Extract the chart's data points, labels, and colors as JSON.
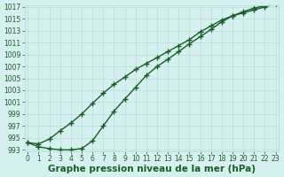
{
  "line1": {
    "x": [
      0,
      1,
      2,
      3,
      4,
      5,
      6,
      7,
      8,
      9,
      10,
      11,
      12,
      13,
      14,
      15,
      16,
      17,
      18,
      19,
      20,
      21,
      22,
      23
    ],
    "y": [
      994.2,
      994.0,
      994.8,
      996.2,
      997.5,
      999.0,
      1000.8,
      1002.5,
      1004.0,
      1005.2,
      1006.5,
      1007.5,
      1008.5,
      1009.5,
      1010.5,
      1011.5,
      1012.8,
      1013.8,
      1014.8,
      1015.5,
      1016.0,
      1016.5,
      1017.0,
      1017.5
    ]
  },
  "line2": {
    "x": [
      0,
      1,
      2,
      3,
      4,
      5,
      6,
      7,
      8,
      9,
      10,
      11,
      12,
      13,
      14,
      15,
      16,
      17,
      18,
      19,
      20,
      21,
      22,
      23
    ],
    "y": [
      994.2,
      993.5,
      993.2,
      993.0,
      993.0,
      993.2,
      994.5,
      997.0,
      999.5,
      1001.5,
      1003.5,
      1005.5,
      1007.0,
      1008.2,
      1009.5,
      1010.8,
      1012.0,
      1013.2,
      1014.5,
      1015.5,
      1016.2,
      1016.8,
      1017.2,
      1017.5
    ]
  },
  "ylim": [
    993,
    1017
  ],
  "xlim": [
    -0.3,
    23.3
  ],
  "yticks": [
    993,
    995,
    997,
    999,
    1001,
    1003,
    1005,
    1007,
    1009,
    1011,
    1013,
    1015,
    1017
  ],
  "xticks": [
    0,
    1,
    2,
    3,
    4,
    5,
    6,
    7,
    8,
    9,
    10,
    11,
    12,
    13,
    14,
    15,
    16,
    17,
    18,
    19,
    20,
    21,
    22,
    23
  ],
  "line_color": "#1a5c2a",
  "marker": "+",
  "bg_color": "#d6f0ef",
  "grid_color": "#b8dcd8",
  "xlabel": "Graphe pression niveau de la mer (hPa)",
  "xlabel_fontsize": 7.5,
  "tick_fontsize": 5.5,
  "linewidth": 1.0,
  "markersize": 4,
  "markeredgewidth": 1.0
}
